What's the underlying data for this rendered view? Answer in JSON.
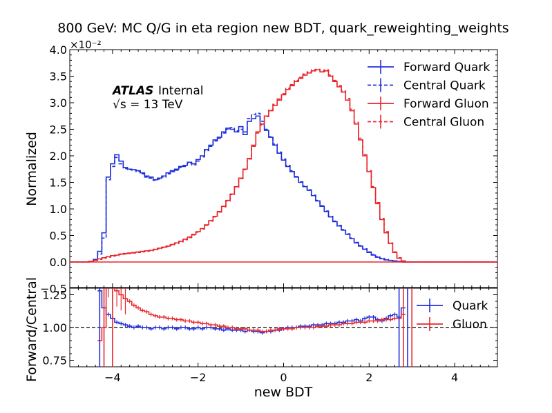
{
  "title": "800 GeV: MC Q/G in eta region new BDT, quark_reweighting_weights",
  "atlas": {
    "bold": "ATLAS",
    "label": "Internal",
    "energy": "√s = 13 TeV"
  },
  "chart_data": [
    {
      "type": "line",
      "panel": "main",
      "ylabel": "Normalized",
      "y_offset_text": "×10⁻²",
      "xlim": [
        -5,
        5
      ],
      "ylim": [
        0,
        4.0
      ],
      "y_unit_scale": "1e-2",
      "yticks": [
        "0.0",
        "0.5",
        "1.0",
        "1.5",
        "2.0",
        "2.5",
        "3.0",
        "3.5",
        "4.0"
      ],
      "legend_position": "top-right",
      "x": [
        -4.6,
        -4.5,
        -4.4,
        -4.3,
        -4.2,
        -4.1,
        -4.0,
        -3.9,
        -3.8,
        -3.7,
        -3.6,
        -3.5,
        -3.4,
        -3.3,
        -3.2,
        -3.1,
        -3.0,
        -2.9,
        -2.8,
        -2.7,
        -2.6,
        -2.5,
        -2.4,
        -2.3,
        -2.2,
        -2.1,
        -2.0,
        -1.9,
        -1.8,
        -1.7,
        -1.6,
        -1.5,
        -1.4,
        -1.3,
        -1.2,
        -1.1,
        -1.0,
        -0.9,
        -0.8,
        -0.7,
        -0.6,
        -0.5,
        -0.4,
        -0.3,
        -0.2,
        -0.1,
        0.0,
        0.1,
        0.2,
        0.3,
        0.4,
        0.5,
        0.6,
        0.7,
        0.8,
        0.9,
        1.0,
        1.1,
        1.2,
        1.3,
        1.4,
        1.5,
        1.6,
        1.7,
        1.8,
        1.9,
        2.0,
        2.1,
        2.2,
        2.3,
        2.4,
        2.5,
        2.6,
        2.7,
        2.8,
        2.9,
        3.0
      ],
      "series": [
        {
          "name": "Forward Quark",
          "color": "#1f2fd9",
          "dash": false,
          "values": [
            0.0,
            0.01,
            0.05,
            0.2,
            0.55,
            1.6,
            1.85,
            2.02,
            1.9,
            1.78,
            1.75,
            1.74,
            1.72,
            1.68,
            1.62,
            1.6,
            1.55,
            1.58,
            1.62,
            1.68,
            1.72,
            1.75,
            1.8,
            1.82,
            1.88,
            1.85,
            1.93,
            2.0,
            2.12,
            2.2,
            2.3,
            2.35,
            2.45,
            2.52,
            2.5,
            2.45,
            2.55,
            2.4,
            2.65,
            2.7,
            2.75,
            2.6,
            2.48,
            2.35,
            2.2,
            2.05,
            1.92,
            1.8,
            1.7,
            1.6,
            1.5,
            1.42,
            1.35,
            1.25,
            1.15,
            1.05,
            0.95,
            0.85,
            0.76,
            0.68,
            0.6,
            0.52,
            0.44,
            0.36,
            0.3,
            0.24,
            0.18,
            0.13,
            0.09,
            0.06,
            0.04,
            0.03,
            0.02,
            0.01,
            0.0,
            0.0,
            0.0
          ]
        },
        {
          "name": "Central Quark",
          "color": "#1f2fd9",
          "dash": true,
          "values": [
            0.0,
            0.01,
            0.04,
            0.15,
            0.45,
            1.55,
            1.8,
            1.97,
            1.85,
            1.76,
            1.74,
            1.73,
            1.7,
            1.66,
            1.6,
            1.58,
            1.54,
            1.56,
            1.6,
            1.66,
            1.7,
            1.73,
            1.78,
            1.8,
            1.86,
            1.83,
            1.9,
            1.98,
            2.1,
            2.18,
            2.28,
            2.33,
            2.43,
            2.5,
            2.53,
            2.47,
            2.5,
            2.45,
            2.7,
            2.78,
            2.8,
            2.65,
            2.5,
            2.36,
            2.22,
            2.07,
            1.94,
            1.82,
            1.72,
            1.61,
            1.51,
            1.43,
            1.36,
            1.26,
            1.16,
            1.06,
            0.96,
            0.86,
            0.77,
            0.69,
            0.61,
            0.53,
            0.45,
            0.37,
            0.31,
            0.25,
            0.19,
            0.14,
            0.1,
            0.07,
            0.05,
            0.03,
            0.02,
            0.01,
            0.0,
            0.0,
            0.0
          ]
        },
        {
          "name": "Forward Gluon",
          "color": "#e8262c",
          "dash": false,
          "values": [
            0.0,
            0.01,
            0.03,
            0.06,
            0.08,
            0.1,
            0.12,
            0.13,
            0.15,
            0.16,
            0.17,
            0.18,
            0.19,
            0.2,
            0.21,
            0.22,
            0.24,
            0.26,
            0.28,
            0.3,
            0.33,
            0.36,
            0.39,
            0.43,
            0.47,
            0.52,
            0.57,
            0.63,
            0.7,
            0.78,
            0.86,
            0.95,
            1.05,
            1.16,
            1.28,
            1.42,
            1.58,
            1.75,
            1.95,
            2.2,
            2.45,
            2.6,
            2.75,
            2.85,
            2.95,
            3.05,
            3.15,
            3.25,
            3.32,
            3.4,
            3.46,
            3.52,
            3.56,
            3.6,
            3.62,
            3.58,
            3.6,
            3.5,
            3.4,
            3.3,
            3.2,
            3.05,
            2.85,
            2.6,
            2.3,
            2.0,
            1.7,
            1.4,
            1.1,
            0.8,
            0.55,
            0.35,
            0.18,
            0.07,
            0.02,
            0.0,
            0.0
          ]
        },
        {
          "name": "Central Gluon",
          "color": "#e8262c",
          "dash": true,
          "values": [
            0.0,
            0.01,
            0.03,
            0.05,
            0.07,
            0.09,
            0.11,
            0.12,
            0.14,
            0.15,
            0.16,
            0.17,
            0.18,
            0.19,
            0.2,
            0.21,
            0.23,
            0.25,
            0.27,
            0.29,
            0.32,
            0.35,
            0.38,
            0.42,
            0.46,
            0.51,
            0.56,
            0.62,
            0.69,
            0.77,
            0.85,
            0.94,
            1.04,
            1.15,
            1.27,
            1.41,
            1.57,
            1.74,
            1.94,
            2.18,
            2.43,
            2.58,
            2.74,
            2.86,
            2.97,
            3.07,
            3.17,
            3.27,
            3.34,
            3.42,
            3.48,
            3.54,
            3.58,
            3.62,
            3.63,
            3.6,
            3.62,
            3.52,
            3.42,
            3.32,
            3.22,
            3.08,
            2.88,
            2.63,
            2.33,
            2.02,
            1.72,
            1.42,
            1.12,
            0.82,
            0.57,
            0.36,
            0.19,
            0.08,
            0.02,
            0.0,
            0.0
          ]
        }
      ]
    },
    {
      "type": "line",
      "panel": "ratio",
      "xlabel": "new BDT",
      "ylabel": "Forward/Central",
      "xlim": [
        -5,
        5
      ],
      "ylim": [
        0.7,
        1.3
      ],
      "xticks": [
        "−4",
        "−2",
        "0",
        "2",
        "4"
      ],
      "yticks": [
        "0.75",
        "1.00",
        "1.25"
      ],
      "reference_line": 1.0,
      "legend_position": "top-right",
      "x": [
        -4.3,
        -4.2,
        -4.1,
        -4.0,
        -3.9,
        -3.8,
        -3.7,
        -3.6,
        -3.5,
        -3.4,
        -3.3,
        -3.2,
        -3.1,
        -3.0,
        -2.9,
        -2.8,
        -2.7,
        -2.6,
        -2.5,
        -2.4,
        -2.3,
        -2.2,
        -2.1,
        -2.0,
        -1.9,
        -1.8,
        -1.7,
        -1.6,
        -1.5,
        -1.4,
        -1.3,
        -1.2,
        -1.1,
        -1.0,
        -0.9,
        -0.8,
        -0.7,
        -0.6,
        -0.5,
        -0.4,
        -0.3,
        -0.2,
        -0.1,
        0.0,
        0.1,
        0.2,
        0.3,
        0.4,
        0.5,
        0.6,
        0.7,
        0.8,
        0.9,
        1.0,
        1.1,
        1.2,
        1.3,
        1.4,
        1.5,
        1.6,
        1.7,
        1.8,
        1.9,
        2.0,
        2.1,
        2.2,
        2.3,
        2.4,
        2.5,
        2.6,
        2.7,
        2.8
      ],
      "series": [
        {
          "name": "Quark",
          "color": "#1f2fd9",
          "values": [
            1.28,
            1.15,
            1.1,
            1.07,
            1.04,
            1.03,
            1.02,
            1.01,
            1.0,
            1.01,
            1.0,
            1.0,
            0.99,
            1.0,
            1.0,
            0.99,
            1.0,
            1.0,
            0.99,
            1.0,
            1.0,
            0.99,
            0.99,
            1.0,
            0.99,
            1.0,
            1.0,
            0.99,
            0.99,
            0.98,
            0.99,
            0.98,
            0.98,
            0.98,
            0.97,
            0.98,
            0.97,
            0.97,
            0.96,
            0.97,
            0.97,
            0.98,
            0.98,
            0.99,
            1.0,
            1.0,
            1.0,
            1.01,
            1.01,
            1.01,
            1.02,
            1.02,
            1.02,
            1.03,
            1.03,
            1.03,
            1.04,
            1.04,
            1.05,
            1.05,
            1.06,
            1.05,
            1.07,
            1.08,
            1.08,
            1.06,
            1.05,
            1.07,
            1.09,
            1.1,
            1.08,
            1.15
          ]
        },
        {
          "name": "Gluon",
          "color": "#e8262c",
          "values": [
            0.9,
            1.0,
            1.35,
            1.32,
            1.28,
            1.25,
            1.22,
            1.2,
            1.17,
            1.15,
            1.13,
            1.12,
            1.1,
            1.09,
            1.08,
            1.08,
            1.07,
            1.07,
            1.06,
            1.06,
            1.05,
            1.05,
            1.04,
            1.04,
            1.03,
            1.03,
            1.02,
            1.02,
            1.01,
            1.01,
            1.0,
            1.0,
            0.99,
            0.99,
            0.99,
            0.98,
            0.98,
            0.98,
            0.97,
            0.97,
            0.98,
            0.98,
            0.99,
            0.99,
            0.99,
            0.99,
            1.0,
            1.0,
            1.0,
            1.0,
            1.0,
            1.01,
            1.01,
            1.01,
            1.02,
            1.02,
            1.02,
            1.03,
            1.03,
            1.03,
            1.04,
            1.04,
            1.04,
            1.05,
            1.05,
            1.05,
            1.06,
            1.06,
            1.06,
            1.07,
            1.07,
            1.1
          ]
        }
      ]
    }
  ]
}
